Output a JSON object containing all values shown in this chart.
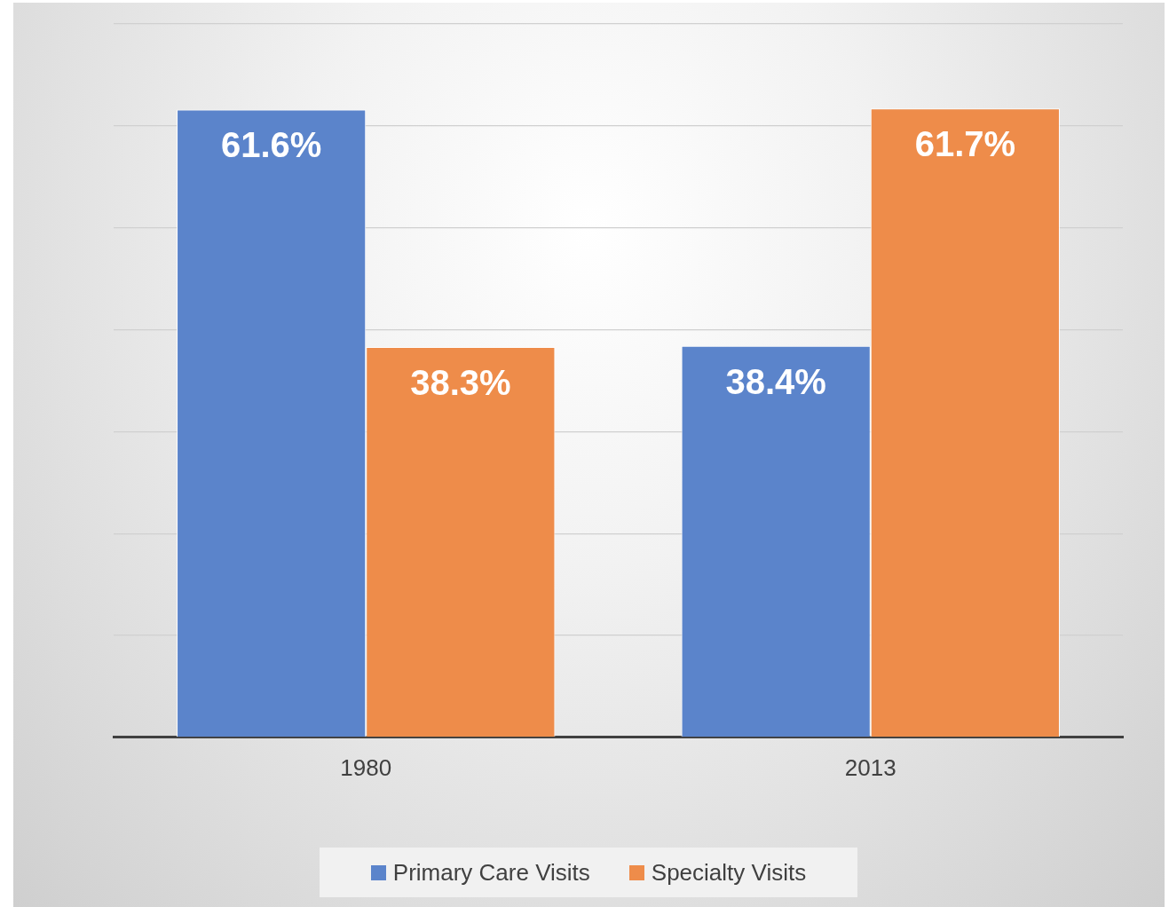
{
  "chart_data": {
    "type": "bar",
    "categories": [
      "1980",
      "2013"
    ],
    "series": [
      {
        "name": "Primary Care Visits",
        "color": "#5b84cb",
        "values": [
          61.6,
          38.4
        ],
        "value_labels": [
          "61.6%",
          "38.4%"
        ]
      },
      {
        "name": "Specialty Visits",
        "color": "#ee8c4a",
        "values": [
          38.3,
          61.7
        ],
        "value_labels": [
          "38.3%",
          "61.7%"
        ]
      }
    ],
    "ylim": [
      0,
      70
    ],
    "yticks": [
      {
        "value": 0,
        "label": null
      },
      {
        "value": 10,
        "label": null
      },
      {
        "value": 20,
        "label": null
      },
      {
        "value": 30,
        "label": null
      },
      {
        "value": 40,
        "label": null
      },
      {
        "value": 50,
        "label": null
      },
      {
        "value": 60,
        "label": null
      },
      {
        "value": 70,
        "label": null
      }
    ],
    "tick_labels": "x",
    "grid": "y",
    "legend": "bottom"
  }
}
